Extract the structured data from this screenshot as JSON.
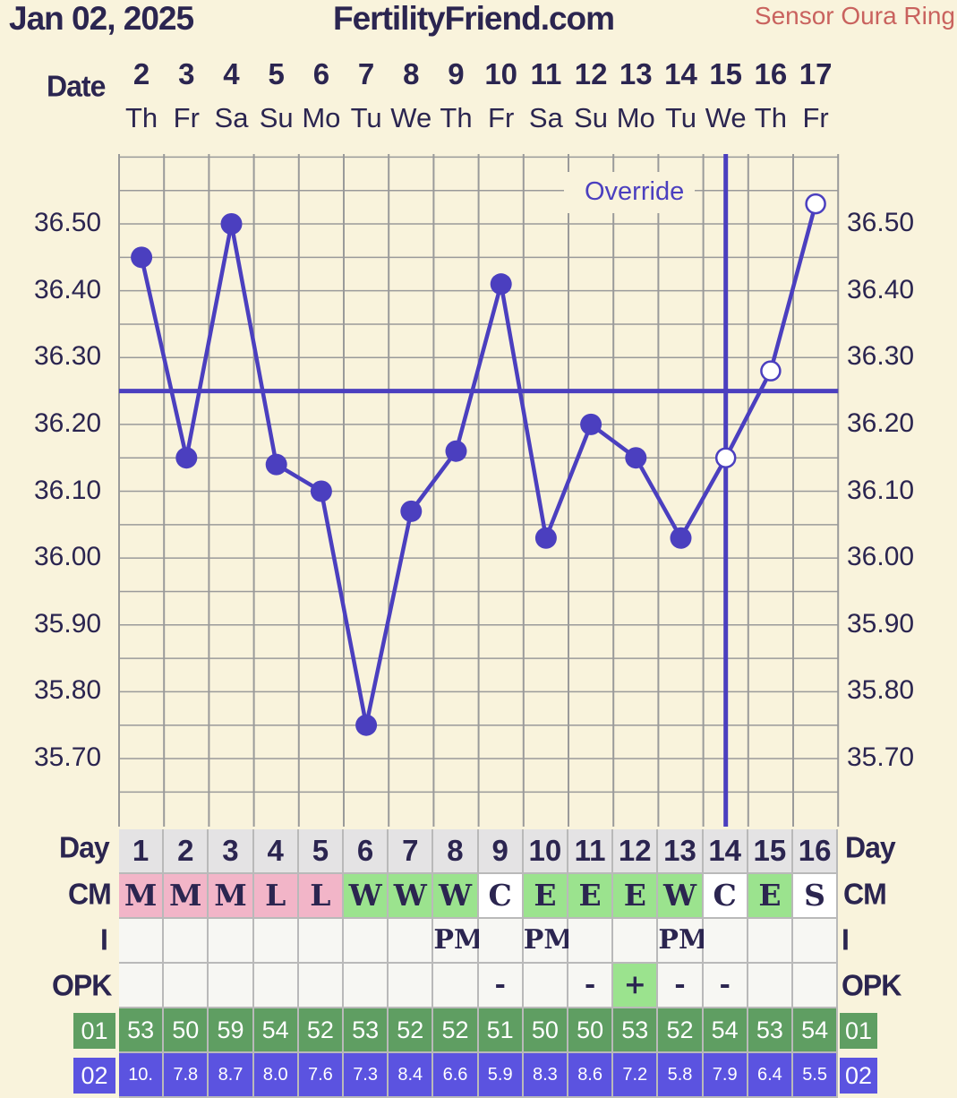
{
  "header": {
    "date": "Jan 02, 2025",
    "site": "FertilityFriend.com",
    "sensor": "Sensor Oura Ring"
  },
  "labels": {
    "date_row": "Date",
    "day_row": "Day",
    "cm_row": "CM",
    "i_row": "I",
    "opk_row": "OPK",
    "r01": "01",
    "r02": "02",
    "override": "Override"
  },
  "colors": {
    "line": "#4b3fbf",
    "background": "#f9f3dc",
    "grid": "#9a9a9a",
    "cm_menstrual": "#f2b5c8",
    "cm_watery": "#9be38e",
    "cm_eggwhite": "#9be38e",
    "opk_positive": "#9be38e",
    "row01": "#5f9e62",
    "row02": "#5b53e0"
  },
  "chart_data": {
    "type": "line",
    "x_dates": [
      "2",
      "3",
      "4",
      "5",
      "6",
      "7",
      "8",
      "9",
      "10",
      "11",
      "12",
      "13",
      "14",
      "15",
      "16",
      "17"
    ],
    "x_weekdays": [
      "Th",
      "Fr",
      "Sa",
      "Su",
      "Mo",
      "Tu",
      "We",
      "Th",
      "Fr",
      "Sa",
      "Su",
      "Mo",
      "Tu",
      "We",
      "Th",
      "Fr"
    ],
    "cycle_days": [
      "1",
      "2",
      "3",
      "4",
      "5",
      "6",
      "7",
      "8",
      "9",
      "10",
      "11",
      "12",
      "13",
      "14",
      "15",
      "16"
    ],
    "series": [
      {
        "values": [
          36.45,
          36.15,
          36.5,
          36.14,
          36.1,
          35.75,
          36.07,
          36.16,
          36.41,
          36.03,
          36.2,
          36.15,
          36.03,
          36.15,
          36.28,
          36.53
        ],
        "hollow": [
          false,
          false,
          false,
          false,
          false,
          false,
          false,
          false,
          false,
          false,
          false,
          false,
          false,
          true,
          true,
          true
        ]
      }
    ],
    "coverline": 36.25,
    "override_day_index": 13,
    "y_ticks": [
      "36.50",
      "36.40",
      "36.30",
      "36.20",
      "36.10",
      "36.00",
      "35.90",
      "35.80",
      "35.70"
    ],
    "ylim": [
      35.62,
      36.6
    ],
    "grid": true
  },
  "rows": {
    "cm": [
      "M",
      "M",
      "M",
      "L",
      "L",
      "W",
      "W",
      "W",
      "C",
      "E",
      "E",
      "E",
      "W",
      "C",
      "E",
      "S"
    ],
    "i": [
      "",
      "",
      "",
      "",
      "",
      "",
      "",
      "PM",
      "",
      "PM",
      "",
      "",
      "PM",
      "",
      "",
      ""
    ],
    "opk": [
      "",
      "",
      "",
      "",
      "",
      "",
      "",
      "",
      "-",
      "",
      "-",
      "+",
      "-",
      "-",
      "",
      ""
    ],
    "r01": [
      "53",
      "50",
      "59",
      "54",
      "52",
      "53",
      "52",
      "52",
      "51",
      "50",
      "50",
      "53",
      "52",
      "54",
      "53",
      "54"
    ],
    "r02": [
      "10.",
      "7.8",
      "8.7",
      "8.0",
      "7.6",
      "7.3",
      "8.4",
      "6.6",
      "5.9",
      "8.3",
      "8.6",
      "7.2",
      "5.8",
      "7.9",
      "6.4",
      "5.5"
    ]
  }
}
